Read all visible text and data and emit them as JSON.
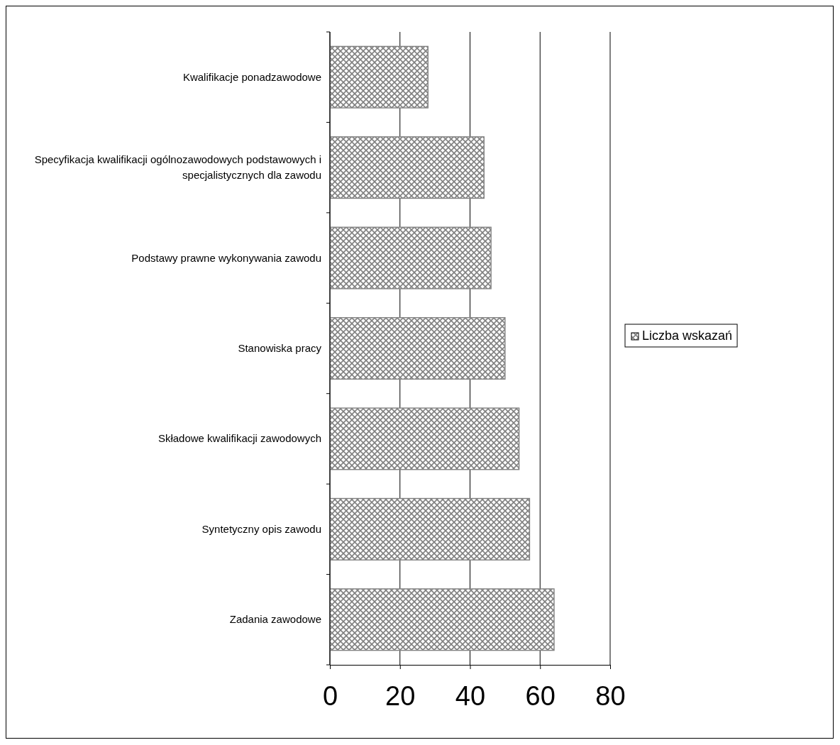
{
  "chart_data": {
    "type": "bar",
    "orientation": "horizontal",
    "categories": [
      "Kwalifikacje ponadzawodowe",
      "Specyfikacja kwalifikacji ogólnozawodowych podstawowych i specjalistycznych dla zawodu",
      "Podstawy prawne wykonywania zawodu",
      "Stanowiska pracy",
      "Składowe kwalifikacji zawodowych",
      "Syntetyczny opis zawodu",
      "Zadania zawodowe"
    ],
    "series": [
      {
        "name": "Liczba wskazań",
        "color": "#808080",
        "values": [
          28,
          44,
          46,
          50,
          54,
          57,
          64
        ]
      }
    ],
    "xlim": [
      0,
      80
    ],
    "xticks": [
      0,
      20,
      40,
      60,
      80
    ],
    "grid": "x",
    "legend": "right"
  }
}
